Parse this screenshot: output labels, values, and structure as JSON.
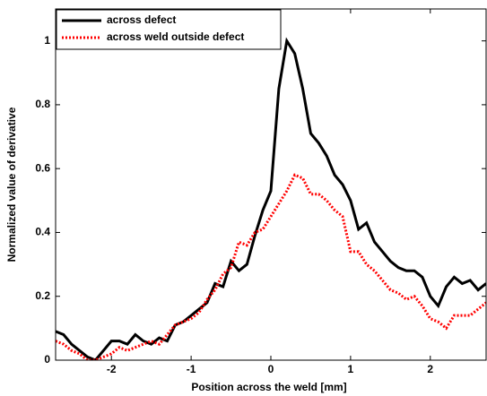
{
  "chart_data": {
    "type": "line",
    "xlabel": "Position across the weld [mm]",
    "ylabel": "Normalized value of derivative",
    "x": [
      -2.7,
      -2.6,
      -2.5,
      -2.4,
      -2.3,
      -2.2,
      -2.1,
      -2.0,
      -1.9,
      -1.8,
      -1.7,
      -1.6,
      -1.5,
      -1.4,
      -1.3,
      -1.2,
      -1.1,
      -1.0,
      -0.9,
      -0.8,
      -0.7,
      -0.6,
      -0.5,
      -0.4,
      -0.3,
      -0.2,
      -0.1,
      0.0,
      0.1,
      0.2,
      0.3,
      0.4,
      0.5,
      0.6,
      0.7,
      0.8,
      0.9,
      1.0,
      1.1,
      1.2,
      1.3,
      1.4,
      1.5,
      1.6,
      1.7,
      1.8,
      1.9,
      2.0,
      2.1,
      2.2,
      2.3,
      2.4,
      2.5,
      2.6,
      2.7
    ],
    "series": [
      {
        "name": "across defect",
        "color": "#000000",
        "style": "solid",
        "values": [
          0.09,
          0.08,
          0.05,
          0.03,
          0.01,
          0.0,
          0.03,
          0.06,
          0.06,
          0.05,
          0.08,
          0.06,
          0.05,
          0.07,
          0.06,
          0.11,
          0.12,
          0.14,
          0.16,
          0.18,
          0.24,
          0.23,
          0.31,
          0.28,
          0.3,
          0.39,
          0.47,
          0.53,
          0.85,
          1.0,
          0.96,
          0.85,
          0.71,
          0.68,
          0.64,
          0.58,
          0.55,
          0.5,
          0.41,
          0.43,
          0.37,
          0.34,
          0.31,
          0.29,
          0.28,
          0.28,
          0.26,
          0.2,
          0.17,
          0.23,
          0.26,
          0.24,
          0.25,
          0.22,
          0.24
        ]
      },
      {
        "name": "across weld outside defect",
        "color": "#ff0000",
        "style": "dotted",
        "values": [
          0.06,
          0.05,
          0.03,
          0.02,
          0.0,
          0.0,
          0.01,
          0.02,
          0.04,
          0.03,
          0.04,
          0.05,
          0.06,
          0.05,
          0.08,
          0.11,
          0.12,
          0.13,
          0.15,
          0.19,
          0.22,
          0.27,
          0.29,
          0.37,
          0.36,
          0.4,
          0.41,
          0.45,
          0.49,
          0.53,
          0.58,
          0.57,
          0.52,
          0.52,
          0.5,
          0.47,
          0.45,
          0.34,
          0.34,
          0.3,
          0.28,
          0.25,
          0.22,
          0.21,
          0.19,
          0.2,
          0.17,
          0.13,
          0.12,
          0.1,
          0.14,
          0.14,
          0.14,
          0.16,
          0.18
        ]
      }
    ],
    "xlim": [
      -2.7,
      2.7
    ],
    "xticks": [
      -2,
      -1,
      0,
      1,
      2
    ],
    "ylim": [
      0,
      1.1
    ],
    "yticks": [
      0,
      0.2,
      0.4,
      0.6,
      0.8,
      1
    ],
    "grid": false,
    "legend": "upper-left"
  }
}
